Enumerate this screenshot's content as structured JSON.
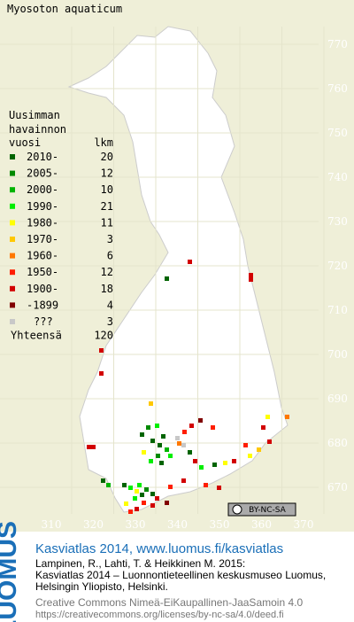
{
  "map": {
    "title": "Myosoton aquaticum",
    "northing_ticks": [
      "770",
      "760",
      "750",
      "740",
      "730",
      "720",
      "710",
      "700",
      "690",
      "680",
      "670"
    ],
    "easting_ticks": [
      "310",
      "320",
      "330",
      "340",
      "350",
      "360",
      "370"
    ],
    "license_badge": "BY-NC-SA"
  },
  "legend": {
    "heading": [
      "Uusimman",
      "havainnon"
    ],
    "col_year": "vuosi",
    "col_count": "lkm",
    "rows": [
      {
        "label": "2010-",
        "count": 20,
        "color": "#006400"
      },
      {
        "label": "2005-",
        "count": 12,
        "color": "#008a00"
      },
      {
        "label": "2000-",
        "count": 10,
        "color": "#00b400"
      },
      {
        "label": "1990-",
        "count": 21,
        "color": "#00ee00"
      },
      {
        "label": "1980-",
        "count": 11,
        "color": "#ffff00"
      },
      {
        "label": "1970-",
        "count": 3,
        "color": "#ffc800"
      },
      {
        "label": "1960-",
        "count": 6,
        "color": "#ff7800"
      },
      {
        "label": "1950-",
        "count": 12,
        "color": "#ff1e00"
      },
      {
        "label": "1900-",
        "count": 18,
        "color": "#d20000"
      },
      {
        "label": "-1899",
        "count": 4,
        "color": "#800000"
      },
      {
        "label": "???",
        "count": 3,
        "color": "#c8c8c8"
      }
    ],
    "total_label": "Yhteensä",
    "total": 120
  },
  "footer": {
    "logo": "LUOMUS",
    "headline": "Kasviatlas 2014, www.luomus.fi/kasviatlas",
    "citation": [
      "Lampinen, R., Lahti, T. & Heikkinen M. 2015:",
      "Kasviatlas 2014 – Luonnontieteellinen keskusmuseo Luomus,",
      "Helsingin Yliopisto, Helsinki."
    ],
    "license": [
      "Creative Commons Nimeä-EiKaupallinen-JaaSamoin 4.0",
      "https://creativecommons.org/licenses/by-nc-sa/4.0/deed.fi"
    ]
  }
}
